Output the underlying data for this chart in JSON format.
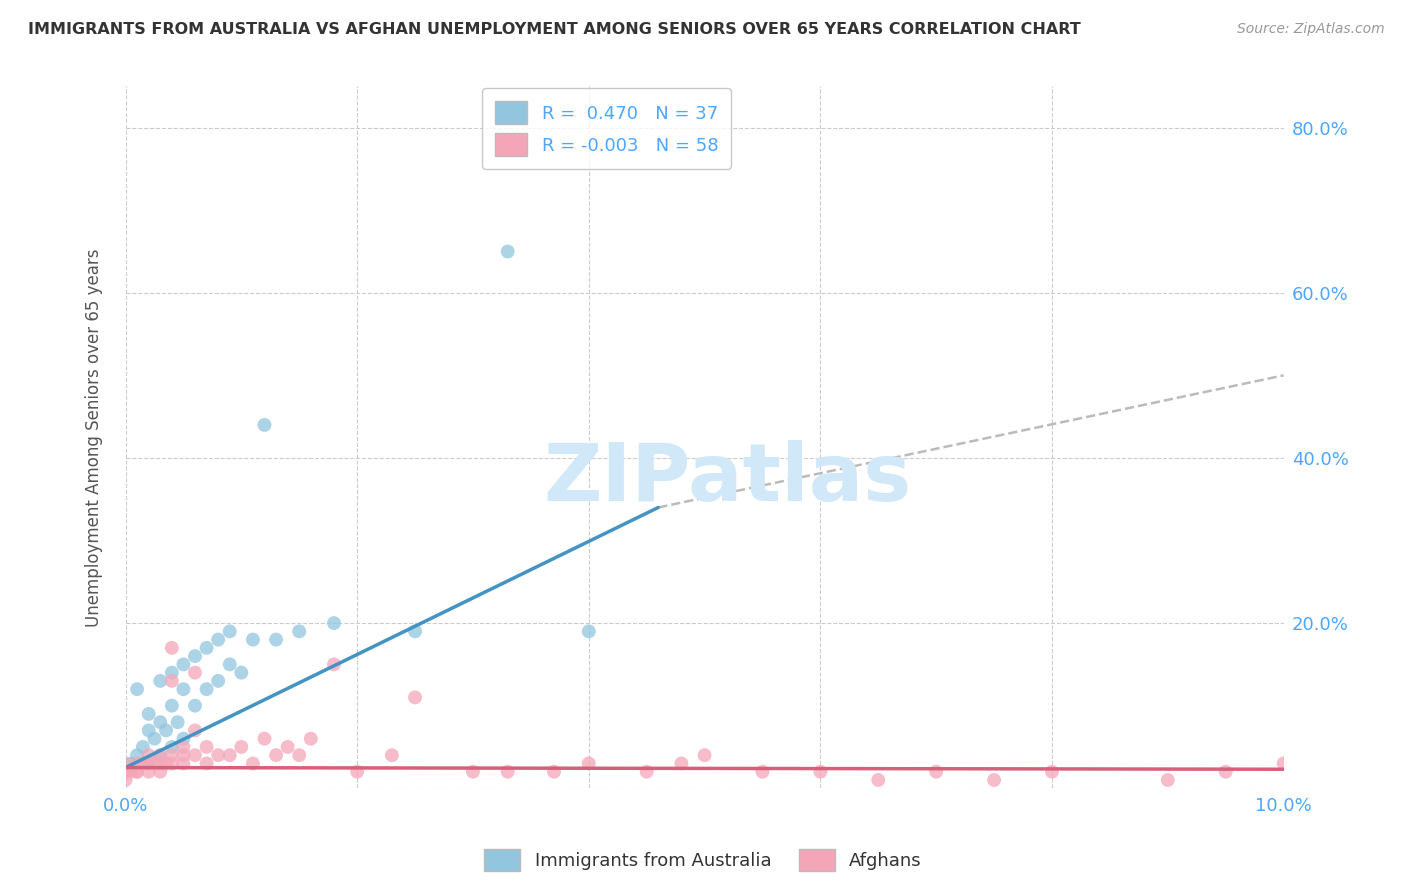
{
  "title": "IMMIGRANTS FROM AUSTRALIA VS AFGHAN UNEMPLOYMENT AMONG SENIORS OVER 65 YEARS CORRELATION CHART",
  "source": "Source: ZipAtlas.com",
  "ylabel": "Unemployment Among Seniors over 65 years",
  "xlim": [
    0,
    0.1
  ],
  "ylim": [
    0,
    0.85
  ],
  "australia_R": 0.47,
  "australia_N": 37,
  "afghan_R": -0.003,
  "afghan_N": 58,
  "australia_color": "#92c5de",
  "afghan_color": "#f4a6b8",
  "australia_line_color": "#4393c3",
  "afghan_line_color": "#d6607a",
  "dash_line_color": "#bbbbbb",
  "background_color": "#ffffff",
  "grid_color": "#cccccc",
  "title_color": "#333333",
  "tick_color": "#4da6ff",
  "watermark": "ZIPatlas",
  "watermark_color": "#d0e8f8",
  "aus_line_x0": 0.0,
  "aus_line_y0": 0.025,
  "aus_line_x1": 0.046,
  "aus_line_y1": 0.34,
  "dash_line_x0": 0.046,
  "dash_line_y0": 0.34,
  "dash_line_x1": 0.1,
  "dash_line_y1": 0.5,
  "afg_line_x0": 0.0,
  "afg_line_y0": 0.025,
  "afg_line_x1": 0.1,
  "afg_line_y1": 0.023,
  "australia_points_x": [
    0.0,
    0.0005,
    0.001,
    0.001,
    0.0015,
    0.002,
    0.002,
    0.002,
    0.0025,
    0.003,
    0.003,
    0.003,
    0.0035,
    0.004,
    0.004,
    0.004,
    0.0045,
    0.005,
    0.005,
    0.005,
    0.006,
    0.006,
    0.007,
    0.007,
    0.008,
    0.008,
    0.009,
    0.009,
    0.01,
    0.011,
    0.012,
    0.013,
    0.015,
    0.018,
    0.025,
    0.033,
    0.04
  ],
  "australia_points_y": [
    0.02,
    0.03,
    0.04,
    0.12,
    0.05,
    0.03,
    0.07,
    0.09,
    0.06,
    0.04,
    0.08,
    0.13,
    0.07,
    0.05,
    0.1,
    0.14,
    0.08,
    0.06,
    0.12,
    0.15,
    0.1,
    0.16,
    0.12,
    0.17,
    0.13,
    0.18,
    0.15,
    0.19,
    0.14,
    0.18,
    0.44,
    0.18,
    0.19,
    0.2,
    0.19,
    0.65,
    0.19
  ],
  "afghan_points_x": [
    0.0,
    0.0,
    0.0,
    0.0,
    0.0005,
    0.001,
    0.001,
    0.001,
    0.0015,
    0.002,
    0.002,
    0.002,
    0.0025,
    0.003,
    0.003,
    0.003,
    0.0035,
    0.004,
    0.004,
    0.004,
    0.005,
    0.005,
    0.005,
    0.006,
    0.006,
    0.007,
    0.007,
    0.008,
    0.009,
    0.01,
    0.011,
    0.012,
    0.013,
    0.014,
    0.015,
    0.016,
    0.018,
    0.02,
    0.023,
    0.025,
    0.03,
    0.033,
    0.037,
    0.04,
    0.045,
    0.048,
    0.05,
    0.055,
    0.06,
    0.065,
    0.07,
    0.075,
    0.08,
    0.09,
    0.095,
    0.1,
    0.004,
    0.006
  ],
  "afghan_points_y": [
    0.01,
    0.02,
    0.03,
    0.02,
    0.02,
    0.02,
    0.03,
    0.02,
    0.03,
    0.02,
    0.03,
    0.04,
    0.03,
    0.02,
    0.04,
    0.03,
    0.03,
    0.03,
    0.17,
    0.04,
    0.03,
    0.04,
    0.05,
    0.04,
    0.14,
    0.03,
    0.05,
    0.04,
    0.04,
    0.05,
    0.03,
    0.06,
    0.04,
    0.05,
    0.04,
    0.06,
    0.15,
    0.02,
    0.04,
    0.11,
    0.02,
    0.02,
    0.02,
    0.03,
    0.02,
    0.03,
    0.04,
    0.02,
    0.02,
    0.01,
    0.02,
    0.01,
    0.02,
    0.01,
    0.02,
    0.03,
    0.13,
    0.07
  ]
}
